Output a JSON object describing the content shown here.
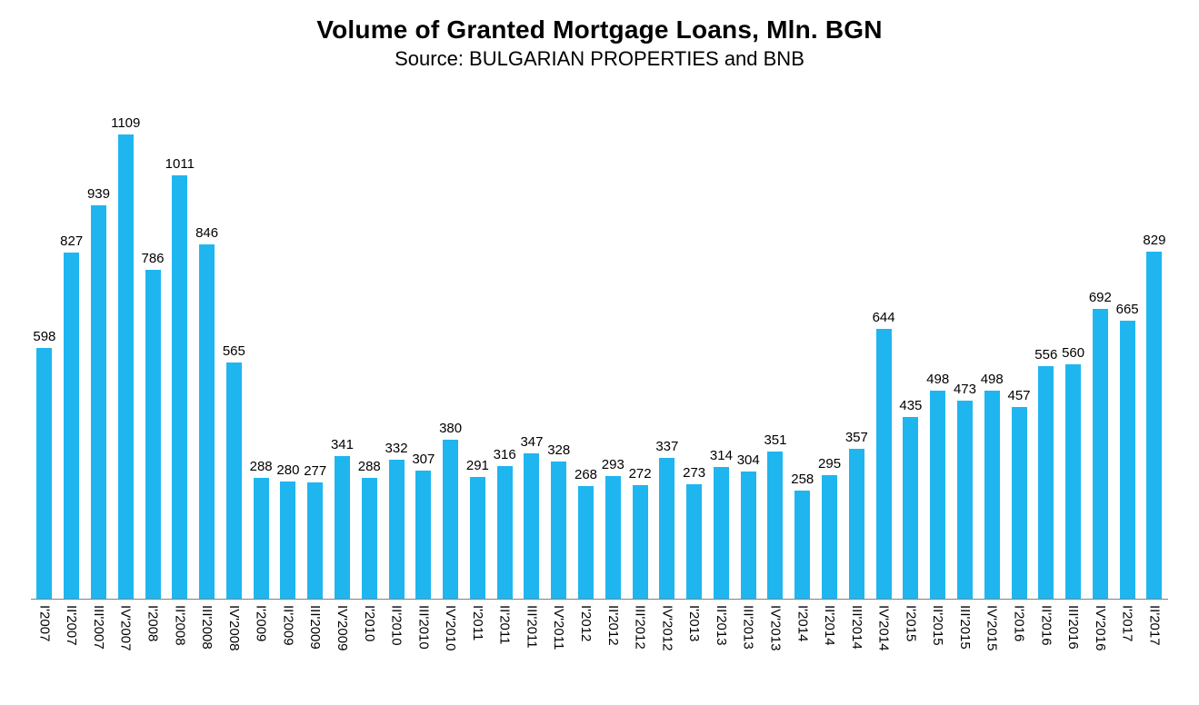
{
  "chart": {
    "background_color": "#FFFFFF",
    "text_color": "#000000",
    "axis_line_color": "#808080"
  },
  "chart_data": {
    "type": "bar",
    "title": "Volume of Granted Mortgage Loans, Mln. BGN",
    "subtitle": "Source: BULGARIAN PROPERTIES and BNB",
    "xlabel": "",
    "ylabel": "",
    "ylim": [
      0,
      1200
    ],
    "grid": false,
    "legend": "none",
    "value_labels": true,
    "x_label_rotation": "vertical",
    "bar_color": "#1FB6F0",
    "categories": [
      "I'2007",
      "II'2007",
      "III'2007",
      "IV'2007",
      "I'2008",
      "II'2008",
      "III'2008",
      "IV'2008",
      "I'2009",
      "II'2009",
      "III'2009",
      "IV'2009",
      "I'2010",
      "II'2010",
      "III'2010",
      "IV'2010",
      "I'2011",
      "II'2011",
      "III'2011",
      "IV'2011",
      "I'2012",
      "II'2012",
      "III'2012",
      "IV'2012",
      "I'2013",
      "II'2013",
      "III'2013",
      "IV'2013",
      "I'2014",
      "II'2014",
      "III'2014",
      "IV'2014",
      "I'2015",
      "II'2015",
      "III'2015",
      "IV'2015",
      "I'2016",
      "II'2016",
      "III'2016",
      "IV'2016",
      "I'2017",
      "II'2017"
    ],
    "values": [
      598,
      827,
      939,
      1109,
      786,
      1011,
      846,
      565,
      288,
      280,
      277,
      341,
      288,
      332,
      307,
      380,
      291,
      316,
      347,
      328,
      268,
      293,
      272,
      337,
      273,
      314,
      304,
      351,
      258,
      295,
      357,
      644,
      435,
      498,
      473,
      498,
      457,
      556,
      560,
      692,
      665,
      829
    ]
  }
}
